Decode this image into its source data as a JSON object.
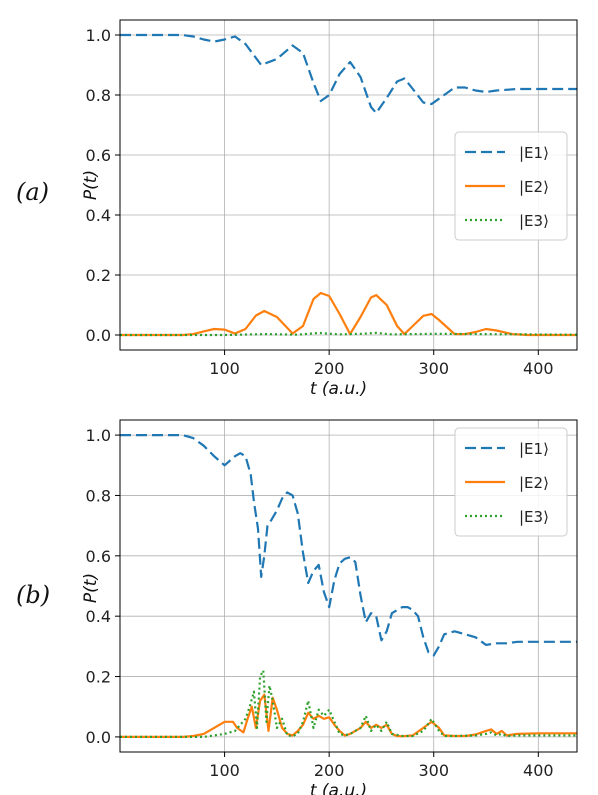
{
  "chart_data": [
    {
      "type": "line",
      "panel_label": "(a)",
      "xlabel": "t (a.u.)",
      "ylabel": "P(t)",
      "xlim": [
        0,
        437
      ],
      "ylim": [
        -0.05,
        1.05
      ],
      "xticks": [
        100,
        200,
        300,
        400
      ],
      "yticks": [
        0.0,
        0.2,
        0.4,
        0.6,
        0.8,
        1.0
      ],
      "ytick_labels": [
        "0.0",
        "0.2",
        "0.4",
        "0.6",
        "0.8",
        "1.0"
      ],
      "grid": true,
      "legend_position": "center-right",
      "series": [
        {
          "name": "|E1⟩",
          "color": "#1f77b4",
          "dash": "dashed",
          "x": [
            0,
            20,
            40,
            60,
            70,
            80,
            90,
            100,
            110,
            120,
            135,
            150,
            165,
            175,
            185,
            192,
            200,
            210,
            220,
            230,
            240,
            245,
            255,
            265,
            272,
            280,
            290,
            298,
            310,
            320,
            330,
            340,
            350,
            360,
            380,
            400,
            420,
            437
          ],
          "y": [
            1.0,
            1.0,
            1.0,
            1.0,
            0.995,
            0.985,
            0.978,
            0.985,
            0.995,
            0.97,
            0.9,
            0.92,
            0.965,
            0.94,
            0.84,
            0.78,
            0.8,
            0.87,
            0.91,
            0.86,
            0.76,
            0.74,
            0.79,
            0.845,
            0.855,
            0.82,
            0.775,
            0.77,
            0.8,
            0.825,
            0.825,
            0.815,
            0.81,
            0.815,
            0.82,
            0.82,
            0.82,
            0.82
          ]
        },
        {
          "name": "|E2⟩",
          "color": "#ff7f0e",
          "dash": "solid",
          "x": [
            0,
            60,
            70,
            80,
            90,
            100,
            110,
            120,
            130,
            138,
            150,
            165,
            175,
            185,
            192,
            200,
            210,
            220,
            230,
            240,
            245,
            255,
            265,
            272,
            280,
            290,
            298,
            305,
            320,
            330,
            340,
            350,
            360,
            375,
            390,
            437
          ],
          "y": [
            0.0,
            0.0,
            0.003,
            0.012,
            0.02,
            0.018,
            0.005,
            0.02,
            0.065,
            0.08,
            0.06,
            0.005,
            0.03,
            0.12,
            0.14,
            0.13,
            0.07,
            0.003,
            0.06,
            0.125,
            0.133,
            0.1,
            0.03,
            0.003,
            0.03,
            0.064,
            0.07,
            0.05,
            0.003,
            0.003,
            0.01,
            0.02,
            0.015,
            0.003,
            0.0,
            0.0
          ]
        },
        {
          "name": "|E3⟩",
          "color": "#2ca02c",
          "dash": "dotted",
          "x": [
            0,
            100,
            140,
            170,
            190,
            210,
            230,
            245,
            260,
            280,
            300,
            437
          ],
          "y": [
            0.0,
            0.0,
            0.003,
            0.001,
            0.007,
            0.002,
            0.004,
            0.007,
            0.002,
            0.003,
            0.004,
            0.001
          ]
        }
      ]
    },
    {
      "type": "line",
      "panel_label": "(b)",
      "xlabel": "t (a.u.)",
      "ylabel": "P(t)",
      "xlim": [
        0,
        437
      ],
      "ylim": [
        -0.05,
        1.05
      ],
      "xticks": [
        100,
        200,
        300,
        400
      ],
      "yticks": [
        0.0,
        0.2,
        0.4,
        0.6,
        0.8,
        1.0
      ],
      "ytick_labels": [
        "0.0",
        "0.2",
        "0.4",
        "0.6",
        "0.8",
        "1.0"
      ],
      "grid": true,
      "legend_position": "top-right",
      "series": [
        {
          "name": "|E1⟩",
          "color": "#1f77b4",
          "dash": "dashed",
          "x": [
            0,
            20,
            40,
            60,
            70,
            80,
            90,
            100,
            110,
            115,
            120,
            125,
            128,
            132,
            135,
            138,
            141,
            145,
            150,
            155,
            160,
            165,
            170,
            175,
            180,
            185,
            190,
            195,
            200,
            205,
            210,
            215,
            220,
            225,
            230,
            235,
            240,
            245,
            250,
            255,
            260,
            265,
            270,
            275,
            280,
            285,
            290,
            295,
            300,
            305,
            310,
            320,
            330,
            340,
            350,
            360,
            370,
            380,
            400,
            420,
            437
          ],
          "y": [
            1.0,
            1.0,
            1.0,
            1.0,
            0.99,
            0.965,
            0.93,
            0.9,
            0.93,
            0.94,
            0.93,
            0.87,
            0.78,
            0.69,
            0.53,
            0.6,
            0.7,
            0.72,
            0.75,
            0.79,
            0.81,
            0.8,
            0.74,
            0.61,
            0.51,
            0.55,
            0.57,
            0.48,
            0.43,
            0.52,
            0.575,
            0.59,
            0.595,
            0.58,
            0.47,
            0.38,
            0.41,
            0.4,
            0.32,
            0.35,
            0.41,
            0.42,
            0.43,
            0.43,
            0.42,
            0.4,
            0.33,
            0.28,
            0.27,
            0.3,
            0.34,
            0.35,
            0.34,
            0.33,
            0.305,
            0.31,
            0.31,
            0.315,
            0.315,
            0.315,
            0.315
          ]
        },
        {
          "name": "|E2⟩",
          "color": "#ff7f0e",
          "dash": "solid",
          "x": [
            0,
            60,
            70,
            80,
            90,
            100,
            108,
            112,
            118,
            122,
            126,
            130,
            134,
            138,
            142,
            146,
            150,
            155,
            160,
            165,
            170,
            175,
            180,
            185,
            190,
            195,
            200,
            205,
            210,
            215,
            220,
            225,
            230,
            235,
            240,
            245,
            250,
            255,
            260,
            265,
            270,
            280,
            290,
            298,
            305,
            310,
            320,
            330,
            340,
            350,
            355,
            360,
            365,
            370,
            380,
            400,
            420,
            437
          ],
          "y": [
            0.0,
            0.0,
            0.003,
            0.01,
            0.03,
            0.05,
            0.05,
            0.03,
            0.015,
            0.06,
            0.1,
            0.03,
            0.12,
            0.14,
            0.02,
            0.13,
            0.09,
            0.03,
            0.01,
            0.005,
            0.02,
            0.04,
            0.08,
            0.06,
            0.07,
            0.06,
            0.065,
            0.04,
            0.02,
            0.005,
            0.01,
            0.02,
            0.03,
            0.05,
            0.03,
            0.04,
            0.03,
            0.04,
            0.01,
            0.003,
            0.002,
            0.005,
            0.03,
            0.05,
            0.03,
            0.005,
            0.003,
            0.003,
            0.008,
            0.02,
            0.025,
            0.01,
            0.02,
            0.005,
            0.01,
            0.012,
            0.012,
            0.012
          ]
        },
        {
          "name": "|E3⟩",
          "color": "#2ca02c",
          "dash": "dotted",
          "x": [
            0,
            80,
            90,
            100,
            110,
            115,
            120,
            124,
            128,
            131,
            134,
            137,
            140,
            143,
            146,
            150,
            155,
            160,
            165,
            170,
            175,
            180,
            185,
            190,
            195,
            200,
            205,
            210,
            215,
            220,
            225,
            230,
            235,
            240,
            245,
            250,
            255,
            260,
            270,
            280,
            290,
            298,
            305,
            310,
            320,
            340,
            350,
            355,
            360,
            365,
            370,
            380,
            400,
            437
          ],
          "y": [
            0.0,
            0.0,
            0.005,
            0.01,
            0.02,
            0.04,
            0.06,
            0.1,
            0.15,
            0.03,
            0.2,
            0.22,
            0.05,
            0.17,
            0.12,
            0.03,
            0.06,
            0.005,
            0.003,
            0.01,
            0.05,
            0.12,
            0.03,
            0.09,
            0.07,
            0.09,
            0.05,
            0.01,
            0.005,
            0.01,
            0.02,
            0.03,
            0.07,
            0.02,
            0.04,
            0.02,
            0.05,
            0.01,
            0.003,
            0.003,
            0.02,
            0.06,
            0.02,
            0.003,
            0.003,
            0.005,
            0.01,
            0.015,
            0.005,
            0.01,
            0.003,
            0.005,
            0.005,
            0.005
          ]
        }
      ]
    }
  ]
}
